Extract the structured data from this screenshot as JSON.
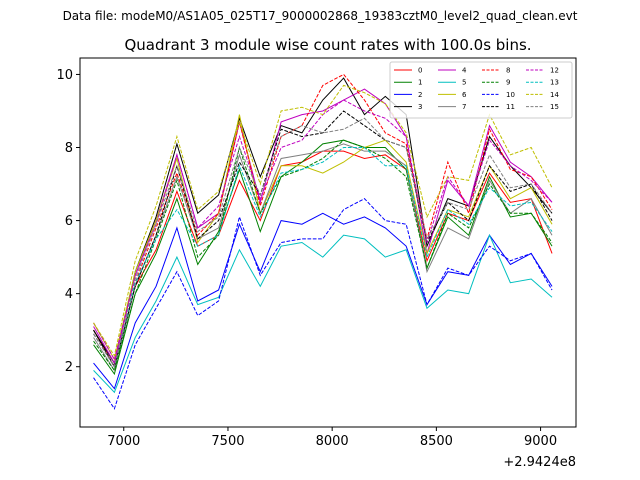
{
  "figure": {
    "suptitle": "Data file: modeM0/AS1A05_025T17_9000002868_19383cztM0_level2_quad_clean.evt"
  },
  "chart_data": {
    "type": "line",
    "title": "Quadrant 3 module wise count rates with 100.0s bins.",
    "xlabel": "",
    "ylabel": "",
    "x_offset_label": "+2.9424e8",
    "xlim": [
      6790,
      9170
    ],
    "ylim": [
      0.35,
      10.45
    ],
    "xticks": [
      7000,
      7500,
      8000,
      8500,
      9000
    ],
    "xtick_labels": [
      "7000",
      "7500",
      "8000",
      "8500",
      "9000"
    ],
    "yticks": [
      2,
      4,
      6,
      8,
      10
    ],
    "ytick_labels": [
      "2",
      "4",
      "6",
      "8",
      "10"
    ],
    "grid": false,
    "legend_position": "top-right",
    "x": [
      6855,
      6955,
      7055,
      7155,
      7255,
      7355,
      7455,
      7555,
      7655,
      7755,
      7855,
      7955,
      8055,
      8155,
      8255,
      8355,
      8455,
      8555,
      8655,
      8755,
      8855,
      8955,
      9055
    ],
    "series": [
      {
        "name": "0",
        "color": "#ff0000",
        "dash": "solid",
        "values": [
          3.0,
          2.0,
          4.2,
          5.2,
          6.8,
          5.3,
          5.6,
          7.1,
          6.0,
          7.5,
          7.6,
          7.9,
          7.9,
          7.7,
          7.8,
          7.4,
          4.9,
          6.2,
          6.0,
          7.3,
          6.5,
          6.6,
          5.1
        ]
      },
      {
        "name": "1",
        "color": "#008000",
        "dash": "solid",
        "values": [
          2.6,
          1.8,
          4.0,
          5.1,
          6.6,
          4.8,
          5.7,
          7.4,
          5.7,
          7.2,
          7.6,
          8.1,
          8.2,
          8.0,
          8.0,
          7.4,
          4.7,
          6.1,
          5.6,
          7.2,
          6.1,
          6.2,
          5.3
        ]
      },
      {
        "name": "2",
        "color": "#0000ff",
        "dash": "solid",
        "values": [
          2.1,
          1.4,
          3.2,
          4.2,
          5.8,
          3.8,
          4.1,
          5.9,
          4.6,
          6.0,
          5.9,
          6.2,
          5.9,
          6.1,
          5.8,
          5.3,
          3.7,
          4.6,
          4.5,
          5.6,
          4.8,
          5.1,
          4.2
        ]
      },
      {
        "name": "3",
        "color": "#000000",
        "dash": "solid",
        "values": [
          3.0,
          2.1,
          4.6,
          6.1,
          8.1,
          6.2,
          6.7,
          8.8,
          7.2,
          8.6,
          8.4,
          9.3,
          9.9,
          8.9,
          9.4,
          8.9,
          5.3,
          6.6,
          6.4,
          8.3,
          7.5,
          6.9,
          6.2
        ]
      },
      {
        "name": "4",
        "color": "#bf00bf",
        "dash": "solid",
        "values": [
          3.1,
          2.1,
          4.5,
          6.0,
          7.8,
          5.8,
          6.2,
          8.7,
          6.5,
          8.7,
          8.9,
          9.0,
          9.3,
          9.6,
          9.2,
          8.3,
          5.1,
          7.1,
          6.4,
          8.6,
          7.6,
          7.2,
          6.5
        ]
      },
      {
        "name": "5",
        "color": "#00bfbf",
        "dash": "solid",
        "values": [
          1.9,
          1.3,
          2.8,
          3.8,
          5.0,
          3.7,
          3.9,
          5.2,
          4.2,
          5.3,
          5.4,
          5.0,
          5.6,
          5.5,
          5.0,
          5.2,
          3.6,
          4.1,
          4.0,
          5.6,
          4.3,
          4.4,
          3.9
        ]
      },
      {
        "name": "6",
        "color": "#bfbf00",
        "dash": "solid",
        "values": [
          3.2,
          2.2,
          4.6,
          6.0,
          7.7,
          5.4,
          6.2,
          8.9,
          6.2,
          7.5,
          7.5,
          7.3,
          7.6,
          8.0,
          8.2,
          7.6,
          5.1,
          6.3,
          6.1,
          7.5,
          6.6,
          6.9,
          5.9
        ]
      },
      {
        "name": "7",
        "color": "#808080",
        "dash": "solid",
        "values": [
          2.8,
          1.9,
          4.2,
          5.6,
          7.2,
          5.5,
          5.8,
          7.8,
          6.2,
          7.7,
          7.8,
          7.9,
          8.1,
          7.9,
          7.9,
          7.5,
          4.6,
          5.8,
          5.5,
          7.1,
          6.2,
          6.6,
          5.6
        ]
      },
      {
        "name": "8",
        "color": "#ff0000",
        "dash": "dashed",
        "values": [
          2.9,
          2.0,
          4.3,
          5.8,
          7.3,
          5.6,
          6.2,
          8.7,
          6.4,
          8.3,
          8.6,
          9.7,
          10.0,
          9.3,
          8.4,
          8.1,
          5.5,
          7.6,
          6.2,
          8.5,
          7.4,
          7.2,
          6.3
        ]
      },
      {
        "name": "9",
        "color": "#008000",
        "dash": "dashed",
        "values": [
          2.7,
          1.9,
          4.0,
          5.5,
          7.1,
          5.0,
          5.6,
          8.0,
          6.2,
          7.2,
          7.4,
          7.7,
          8.2,
          8.0,
          7.7,
          7.2,
          4.7,
          6.2,
          5.8,
          7.0,
          6.2,
          6.2,
          5.4
        ]
      },
      {
        "name": "10",
        "color": "#0000ff",
        "dash": "dashed",
        "values": [
          1.7,
          0.85,
          2.6,
          3.6,
          4.6,
          3.4,
          3.8,
          6.1,
          4.5,
          5.4,
          5.5,
          5.5,
          6.3,
          6.6,
          6.0,
          5.9,
          3.7,
          4.7,
          4.5,
          5.3,
          4.9,
          5.1,
          4.1
        ]
      },
      {
        "name": "11",
        "color": "#000000",
        "dash": "dashed",
        "values": [
          3.0,
          2.0,
          4.2,
          5.6,
          7.5,
          5.5,
          6.0,
          7.6,
          6.7,
          8.5,
          8.3,
          8.4,
          9.0,
          8.6,
          8.2,
          8.0,
          5.4,
          6.5,
          6.0,
          7.5,
          6.8,
          7.0,
          6.0
        ]
      },
      {
        "name": "12",
        "color": "#bf00bf",
        "dash": "dashed",
        "values": [
          3.2,
          2.2,
          4.5,
          5.9,
          7.8,
          5.8,
          6.4,
          8.3,
          6.6,
          8.0,
          8.2,
          8.9,
          9.3,
          9.0,
          8.8,
          8.3,
          5.4,
          7.2,
          6.4,
          8.2,
          7.5,
          7.1,
          6.5
        ]
      },
      {
        "name": "13",
        "color": "#00bfbf",
        "dash": "dashed",
        "values": [
          2.9,
          2.0,
          4.3,
          5.5,
          6.3,
          5.3,
          5.6,
          7.5,
          6.1,
          7.3,
          7.4,
          7.6,
          8.0,
          8.0,
          7.5,
          7.5,
          5.0,
          6.3,
          5.9,
          6.9,
          6.4,
          6.5,
          5.7
        ]
      },
      {
        "name": "14",
        "color": "#bfbf00",
        "dash": "dashed",
        "values": [
          3.2,
          2.3,
          4.9,
          6.4,
          8.3,
          6.3,
          6.8,
          8.7,
          7.0,
          9.0,
          9.1,
          8.9,
          9.7,
          9.5,
          9.2,
          8.4,
          6.1,
          7.2,
          7.1,
          8.9,
          7.8,
          8.0,
          6.9
        ]
      },
      {
        "name": "15",
        "color": "#808080",
        "dash": "dashed",
        "values": [
          2.9,
          2.0,
          4.4,
          5.9,
          7.5,
          5.7,
          6.1,
          8.0,
          6.7,
          8.3,
          8.6,
          8.4,
          8.5,
          8.8,
          8.2,
          8.0,
          5.5,
          6.5,
          6.3,
          7.8,
          6.9,
          7.0,
          6.2
        ]
      }
    ]
  }
}
